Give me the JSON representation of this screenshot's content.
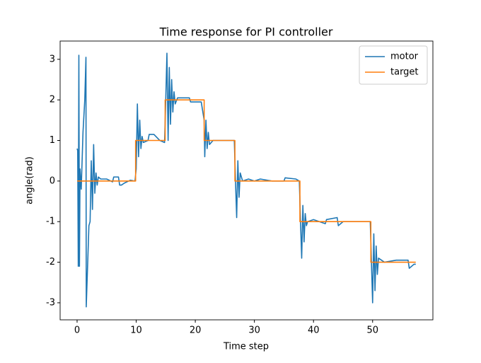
{
  "chart_data": {
    "type": "line",
    "title": "Time response for PI controller",
    "x_label": "Time step",
    "y_label": "angle(rad)",
    "xlim": [
      -2.87,
      60.2
    ],
    "ylim": [
      -3.42,
      3.45
    ],
    "xticks": [
      0,
      10,
      20,
      30,
      40,
      50
    ],
    "yticks": [
      -3,
      -2,
      -1,
      0,
      1,
      2,
      3
    ],
    "legend": "upper right",
    "grid": false,
    "series": [
      {
        "name": "motor",
        "color": "#1f77b4",
        "x": [
          0,
          0.1,
          0.2,
          0.3,
          0.4,
          0.5,
          0.7,
          1.0,
          1.3,
          1.5,
          1.55,
          1.8,
          2.0,
          2.2,
          2.4,
          2.6,
          2.8,
          3.0,
          3.2,
          3.4,
          3.6,
          4,
          5,
          6,
          6.2,
          7,
          7.2,
          7.5,
          8,
          9,
          9.8,
          10.0,
          10.2,
          10.4,
          10.6,
          10.8,
          11,
          11.2,
          12,
          12.2,
          13,
          14,
          14.8,
          15.0,
          15.2,
          15.4,
          15.6,
          15.8,
          16.0,
          16.2,
          16.4,
          16.6,
          17,
          19,
          19.2,
          20,
          21,
          21.5,
          21.6,
          21.8,
          22.0,
          22.2,
          22.4,
          23,
          26.6,
          26.8,
          27,
          27.2,
          27.4,
          27.6,
          28,
          29,
          30,
          31,
          33,
          35,
          35.2,
          37,
          37.6,
          37.8,
          38.0,
          38.2,
          38.4,
          38.6,
          38.8,
          39,
          40,
          42,
          42.2,
          44,
          44.2,
          45,
          47,
          49.6,
          49.8,
          50.0,
          50.2,
          50.4,
          50.6,
          50.8,
          51,
          52,
          54,
          56,
          56.2,
          57,
          57.3
        ],
        "values": [
          0.8,
          0.75,
          -2.1,
          3.1,
          -2.1,
          0.3,
          -0.2,
          1.2,
          2.0,
          3.05,
          -3.1,
          -2,
          -1.1,
          -1.0,
          0.5,
          -0.7,
          0.9,
          -0.3,
          0.2,
          -0.1,
          0.1,
          0.05,
          0.05,
          -0.02,
          0.1,
          0.1,
          -0.1,
          -0.1,
          -0.05,
          0.02,
          0.0,
          0.3,
          1.9,
          0.6,
          1.5,
          0.8,
          1.1,
          0.95,
          1.0,
          1.15,
          1.15,
          1.0,
          0.95,
          2.0,
          3.15,
          1.0,
          2.8,
          1.4,
          2.5,
          1.7,
          2.2,
          1.9,
          2.05,
          2.05,
          1.95,
          1.95,
          1.95,
          1.5,
          0.6,
          1.5,
          0.8,
          1.2,
          0.9,
          1.0,
          1.0,
          0.0,
          -0.9,
          0.5,
          -0.4,
          0.2,
          0.0,
          0.05,
          0.0,
          0.05,
          0.0,
          0.0,
          0.08,
          0.05,
          0.0,
          -1.0,
          -1.9,
          -0.6,
          -1.5,
          -0.8,
          -1.1,
          -1.0,
          -0.95,
          -1.05,
          -0.95,
          -0.9,
          -1.1,
          -1.0,
          -1.0,
          -1.0,
          -2.0,
          -3.0,
          -1.3,
          -2.7,
          -1.6,
          -2.3,
          -1.9,
          -2.0,
          -1.95,
          -1.95,
          -2.15,
          -2.05,
          -2.05
        ]
      },
      {
        "name": "target",
        "color": "#ff7f0e",
        "x": [
          0,
          9.9,
          9.9,
          14.9,
          14.9,
          21.5,
          21.5,
          26.7,
          26.7,
          37.7,
          37.7,
          49.7,
          49.7,
          57.3
        ],
        "values": [
          0,
          0,
          1,
          1,
          2,
          2,
          1,
          1,
          0,
          0,
          -1,
          -1,
          -2,
          -2
        ]
      }
    ]
  }
}
